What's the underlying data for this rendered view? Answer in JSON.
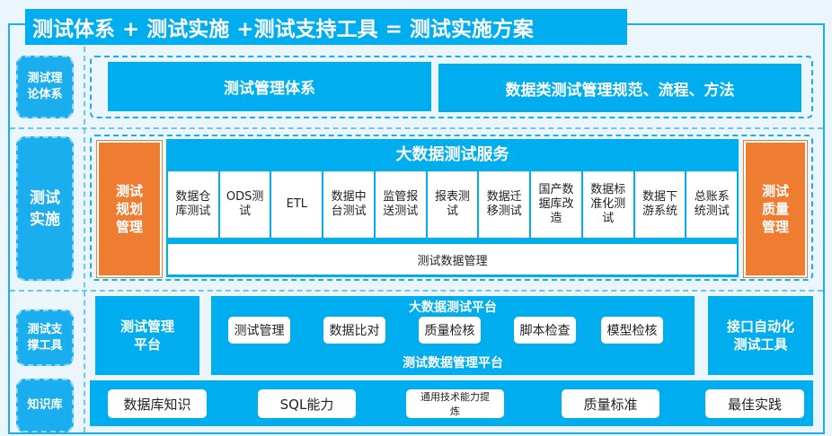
{
  "title": "测试体系 + 测试实施 +测试支持工具 = 测试实施方案",
  "rows": {
    "theory": {
      "label": "测试理论体系",
      "items": [
        "测试管理体系",
        "数据类测试管理规范、流程、方法"
      ]
    },
    "implementation": {
      "label": "测试实施",
      "left": "测试规划管理",
      "right": "测试质量管理",
      "service_title": "大数据测试服务",
      "services": [
        "数据仓库测试",
        "ODS测试",
        "ETL",
        "数据中台测试",
        "监管报送测试",
        "报表测试",
        "数据迁移测试",
        "国产数据库改造",
        "数据标准化测试",
        "数据下游系统",
        "总账系统测试"
      ],
      "bottom": "测试数据管理"
    },
    "tools": {
      "label": "测试支撑工具",
      "left": "测试管理平台",
      "platform_title": "大数据测试平台",
      "platform_items": [
        "测试管理",
        "数据比对",
        "质量检核",
        "脚本检查",
        "模型检核"
      ],
      "platform_bottom": "测试数据管理平台",
      "right": "接口自动化测试工具"
    },
    "knowledge": {
      "label": "知识库",
      "items": [
        "数据库知识",
        "SQL能力",
        "通用技术能力提炼",
        "质量标准",
        "最佳实践"
      ]
    }
  },
  "colors": {
    "blue": "#00aeef",
    "orange": "#ef7d31",
    "background": "#eaf6fc"
  }
}
